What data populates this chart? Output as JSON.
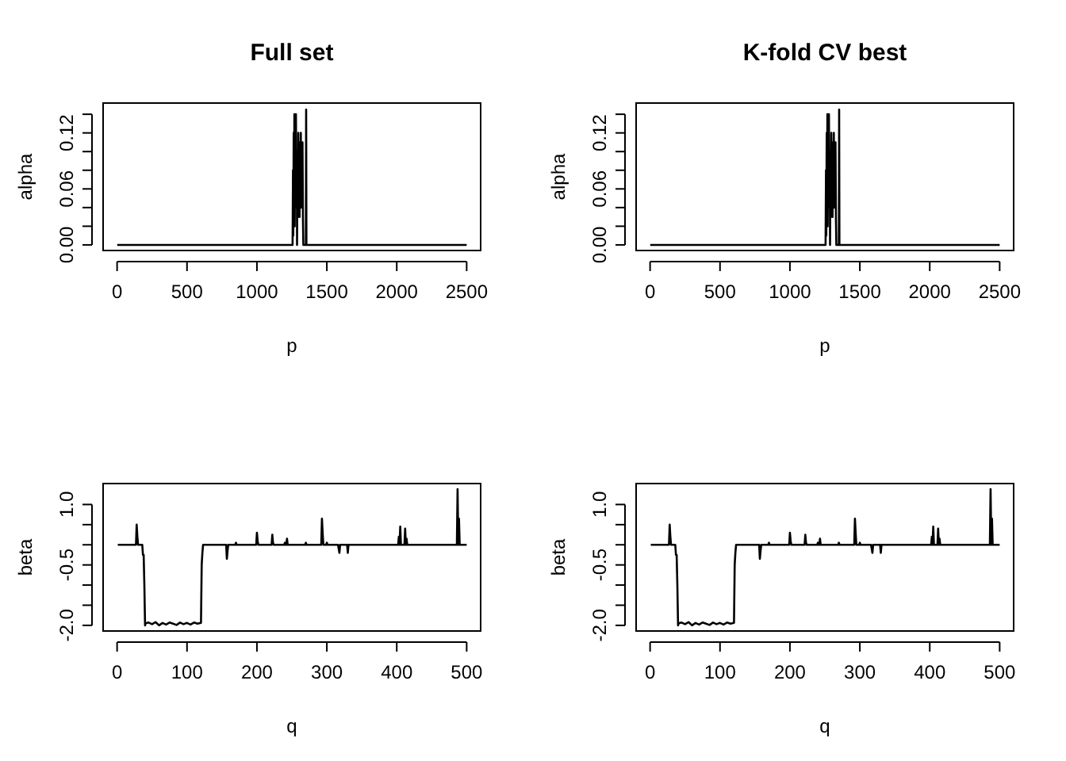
{
  "chart_data": [
    {
      "type": "line",
      "title": "Full set",
      "xlabel": "p",
      "ylabel": "alpha",
      "xlim": [
        -100,
        2600
      ],
      "ylim": [
        -0.006,
        0.152
      ],
      "xticks": [
        0,
        500,
        1000,
        1500,
        2000,
        2500
      ],
      "yticks": [
        {
          "value": 0,
          "label": "0.00"
        },
        {
          "value": 0.02,
          "label": null
        },
        {
          "value": 0.04,
          "label": null
        },
        {
          "value": 0.06,
          "label": "0.06"
        },
        {
          "value": 0.08,
          "label": null
        },
        {
          "value": 0.1,
          "label": null
        },
        {
          "value": 0.12,
          "label": "0.12"
        },
        {
          "value": 0.14,
          "label": null
        }
      ],
      "series": [
        {
          "color": "#000000",
          "x": [
            1,
            1254,
            1255,
            1258,
            1260,
            1263,
            1265,
            1268,
            1270,
            1273,
            1276,
            1279,
            1282,
            1285,
            1287,
            1290,
            1293,
            1296,
            1299,
            1302,
            1305,
            1308,
            1311,
            1314,
            1317,
            1320,
            1323,
            1326,
            1329,
            1332,
            1350,
            1352,
            1354,
            2500
          ],
          "values": [
            0,
            0,
            0,
            0.08,
            0.01,
            0.12,
            0.03,
            0.14,
            0.02,
            0.11,
            0.04,
            0.14,
            0.05,
            0.1,
            0,
            0.1,
            0.03,
            0.12,
            0.05,
            0.09,
            0.03,
            0.11,
            0.06,
            0.12,
            0.04,
            0.1,
            0.07,
            0.11,
            0.03,
            0,
            0,
            0.145,
            0,
            0
          ]
        }
      ]
    },
    {
      "type": "line",
      "title": "K-fold CV best",
      "xlabel": "p",
      "ylabel": "alpha",
      "xlim": [
        -100,
        2600
      ],
      "ylim": [
        -0.006,
        0.152
      ],
      "xticks": [
        0,
        500,
        1000,
        1500,
        2000,
        2500
      ],
      "yticks": [
        {
          "value": 0,
          "label": "0.00"
        },
        {
          "value": 0.02,
          "label": null
        },
        {
          "value": 0.04,
          "label": null
        },
        {
          "value": 0.06,
          "label": "0.06"
        },
        {
          "value": 0.08,
          "label": null
        },
        {
          "value": 0.1,
          "label": null
        },
        {
          "value": 0.12,
          "label": "0.12"
        },
        {
          "value": 0.14,
          "label": null
        }
      ],
      "series": [
        {
          "color": "#000000",
          "x": [
            1,
            1254,
            1255,
            1258,
            1260,
            1263,
            1265,
            1268,
            1270,
            1273,
            1276,
            1279,
            1282,
            1285,
            1287,
            1290,
            1293,
            1296,
            1299,
            1302,
            1305,
            1308,
            1311,
            1314,
            1317,
            1320,
            1323,
            1326,
            1329,
            1332,
            1350,
            1352,
            1354,
            2500
          ],
          "values": [
            0,
            0,
            0,
            0.08,
            0.01,
            0.12,
            0.03,
            0.14,
            0.02,
            0.11,
            0.04,
            0.14,
            0.05,
            0.1,
            0,
            0.1,
            0.03,
            0.12,
            0.05,
            0.09,
            0.03,
            0.11,
            0.06,
            0.12,
            0.04,
            0.1,
            0.07,
            0.11,
            0.03,
            0,
            0,
            0.145,
            0,
            0
          ]
        }
      ]
    },
    {
      "type": "line",
      "xlabel": "q",
      "ylabel": "beta",
      "xlim": [
        -20,
        520
      ],
      "ylim": [
        -2.14,
        1.52
      ],
      "xticks": [
        0,
        100,
        200,
        300,
        400,
        500
      ],
      "yticks": [
        {
          "value": -2,
          "label": "-2.0"
        },
        {
          "value": -1.5,
          "label": null
        },
        {
          "value": -1,
          "label": null
        },
        {
          "value": -0.5,
          "label": "-0.5"
        },
        {
          "value": 0,
          "label": null
        },
        {
          "value": 0.5,
          "label": null
        },
        {
          "value": 1,
          "label": "1.0"
        }
      ],
      "series": [
        {
          "color": "#000000",
          "x": [
            1,
            27,
            28,
            29,
            30,
            36,
            37,
            38,
            39,
            40,
            41,
            45,
            50,
            55,
            60,
            65,
            70,
            75,
            80,
            85,
            90,
            95,
            100,
            105,
            110,
            115,
            120,
            121,
            122,
            123,
            156,
            157,
            158,
            159,
            169,
            170,
            171,
            199,
            200,
            201,
            202,
            221,
            222,
            223,
            224,
            225,
            239,
            240,
            241,
            242,
            243,
            244,
            269,
            270,
            271,
            292,
            293,
            294,
            295,
            299,
            300,
            301,
            316,
            317,
            318,
            319,
            329,
            330,
            331,
            402,
            403,
            404,
            405,
            406,
            411,
            412,
            413,
            414,
            415,
            486,
            487,
            488,
            489,
            490,
            500
          ],
          "values": [
            0,
            0,
            0.5,
            0.2,
            0,
            0,
            -0.25,
            -0.25,
            -1.0,
            -2.0,
            -1.95,
            -1.93,
            -1.97,
            -1.92,
            -2.0,
            -1.94,
            -1.98,
            -1.93,
            -1.96,
            -1.99,
            -1.93,
            -1.97,
            -1.94,
            -1.98,
            -1.93,
            -1.96,
            -1.94,
            -0.5,
            -0.2,
            0,
            0,
            -0.35,
            -0.15,
            0,
            0,
            0.05,
            0,
            0,
            0.3,
            0.1,
            0,
            0,
            0.25,
            0.05,
            0,
            0,
            0,
            0.05,
            0,
            0,
            0.15,
            0,
            0,
            0.05,
            0,
            0,
            0.65,
            0.3,
            0,
            0,
            0.05,
            0,
            0,
            -0.1,
            -0.2,
            0,
            0,
            -0.2,
            0,
            0,
            0.2,
            0,
            0.45,
            0,
            0,
            0.4,
            0,
            0.15,
            0,
            0,
            1.38,
            0,
            0.65,
            0,
            0
          ]
        }
      ]
    },
    {
      "type": "line",
      "xlabel": "q",
      "ylabel": "beta",
      "xlim": [
        -20,
        520
      ],
      "ylim": [
        -2.14,
        1.52
      ],
      "xticks": [
        0,
        100,
        200,
        300,
        400,
        500
      ],
      "yticks": [
        {
          "value": -2,
          "label": "-2.0"
        },
        {
          "value": -1.5,
          "label": null
        },
        {
          "value": -1,
          "label": null
        },
        {
          "value": -0.5,
          "label": "-0.5"
        },
        {
          "value": 0,
          "label": null
        },
        {
          "value": 0.5,
          "label": null
        },
        {
          "value": 1,
          "label": "1.0"
        }
      ],
      "series": [
        {
          "color": "#000000",
          "x": [
            1,
            27,
            28,
            29,
            30,
            36,
            37,
            38,
            39,
            40,
            41,
            45,
            50,
            55,
            60,
            65,
            70,
            75,
            80,
            85,
            90,
            95,
            100,
            105,
            110,
            115,
            120,
            121,
            122,
            123,
            156,
            157,
            158,
            159,
            169,
            170,
            171,
            199,
            200,
            201,
            202,
            221,
            222,
            223,
            224,
            225,
            239,
            240,
            241,
            242,
            243,
            244,
            269,
            270,
            271,
            292,
            293,
            294,
            295,
            299,
            300,
            301,
            316,
            317,
            318,
            319,
            329,
            330,
            331,
            402,
            403,
            404,
            405,
            406,
            411,
            412,
            413,
            414,
            415,
            486,
            487,
            488,
            489,
            490,
            500
          ],
          "values": [
            0,
            0,
            0.5,
            0.2,
            0,
            0,
            -0.25,
            -0.25,
            -1.0,
            -2.0,
            -1.95,
            -1.93,
            -1.97,
            -1.92,
            -2.0,
            -1.94,
            -1.98,
            -1.93,
            -1.96,
            -1.99,
            -1.93,
            -1.97,
            -1.94,
            -1.98,
            -1.93,
            -1.96,
            -1.94,
            -0.5,
            -0.2,
            0,
            0,
            -0.35,
            -0.15,
            0,
            0,
            0.05,
            0,
            0,
            0.3,
            0.1,
            0,
            0,
            0.25,
            0.05,
            0,
            0,
            0,
            0.05,
            0,
            0,
            0.15,
            0,
            0,
            0.05,
            0,
            0,
            0.65,
            0.3,
            0,
            0,
            0.05,
            0,
            0,
            -0.1,
            -0.2,
            0,
            0,
            -0.2,
            0,
            0,
            0.2,
            0,
            0.45,
            0,
            0,
            0.4,
            0,
            0.15,
            0,
            0,
            1.38,
            0,
            0.65,
            0,
            0
          ]
        }
      ]
    }
  ]
}
